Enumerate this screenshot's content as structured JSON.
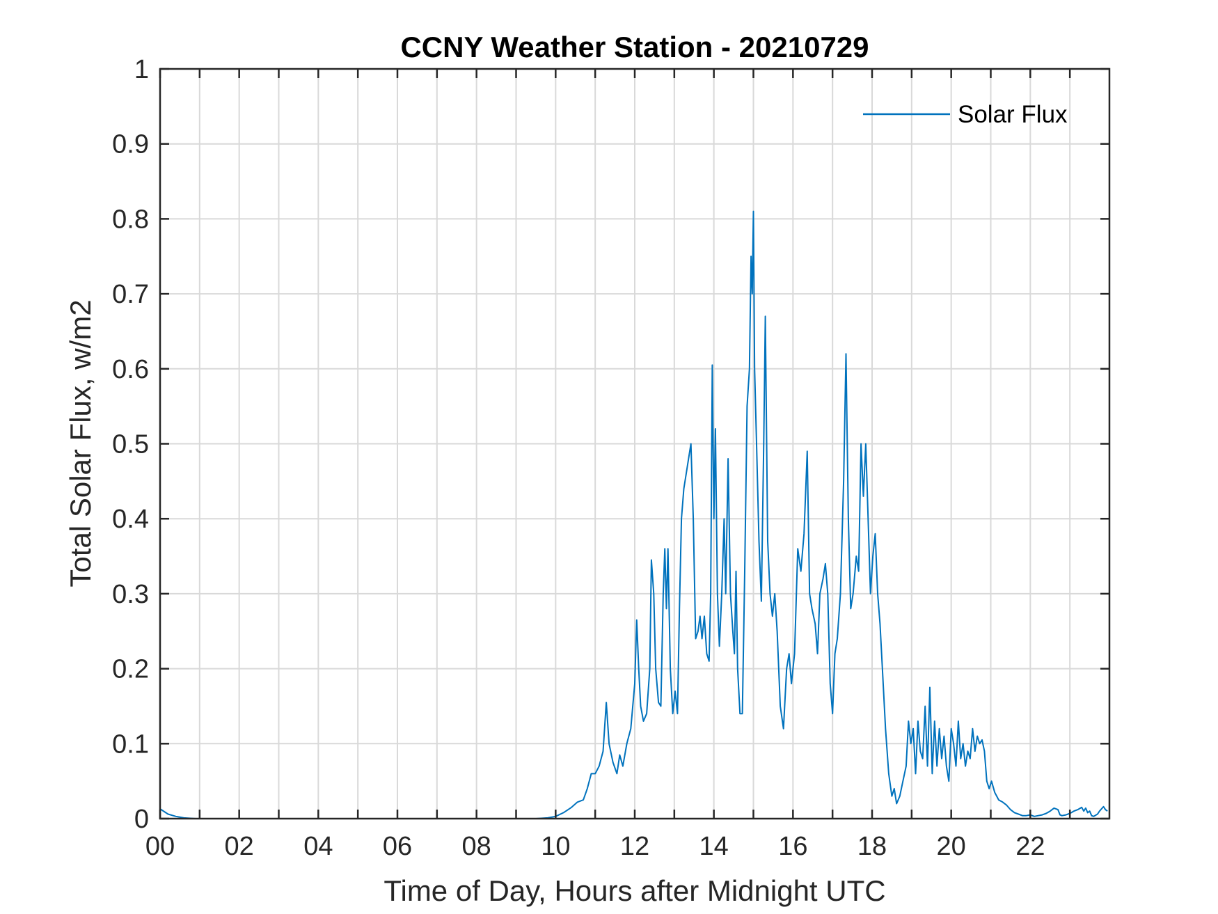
{
  "chart_data": {
    "type": "line",
    "title": "CCNY Weather Station - 20210729",
    "xlabel": "Time of Day, Hours after Midnight UTC",
    "ylabel": "Total Solar Flux, w/m2",
    "xlim": [
      0,
      24
    ],
    "ylim": [
      0,
      1
    ],
    "grid": true,
    "legend_position": "top-right",
    "x_ticks": [
      0,
      1,
      2,
      3,
      4,
      5,
      6,
      7,
      8,
      9,
      10,
      11,
      12,
      13,
      14,
      15,
      16,
      17,
      18,
      19,
      20,
      21,
      22,
      23
    ],
    "x_tick_labels": [
      "00",
      "02",
      "04",
      "06",
      "08",
      "10",
      "12",
      "14",
      "16",
      "18",
      "20",
      "22"
    ],
    "x_tick_label_values": [
      0,
      2,
      4,
      6,
      8,
      10,
      12,
      14,
      16,
      18,
      20,
      22
    ],
    "y_ticks": [
      0,
      0.1,
      0.2,
      0.3,
      0.4,
      0.5,
      0.6,
      0.7,
      0.8,
      0.9,
      1
    ],
    "y_tick_labels": [
      "0",
      "0.1",
      "0.2",
      "0.3",
      "0.4",
      "0.5",
      "0.6",
      "0.7",
      "0.8",
      "0.9",
      "1"
    ],
    "series": [
      {
        "name": "Solar Flux",
        "color": "#0072BD",
        "points": [
          [
            0.0,
            0.013
          ],
          [
            0.2,
            0.006
          ],
          [
            0.4,
            0.003
          ],
          [
            0.6,
            0.001
          ],
          [
            0.9,
            0.0
          ],
          [
            2.0,
            0.0
          ],
          [
            4.0,
            0.0
          ],
          [
            6.0,
            0.0
          ],
          [
            8.0,
            0.0
          ],
          [
            9.5,
            0.0
          ],
          [
            9.8,
            0.001
          ],
          [
            10.0,
            0.003
          ],
          [
            10.2,
            0.008
          ],
          [
            10.4,
            0.015
          ],
          [
            10.55,
            0.022
          ],
          [
            10.7,
            0.025
          ],
          [
            10.8,
            0.04
          ],
          [
            10.9,
            0.06
          ],
          [
            11.0,
            0.06
          ],
          [
            11.1,
            0.07
          ],
          [
            11.2,
            0.09
          ],
          [
            11.28,
            0.155
          ],
          [
            11.35,
            0.1
          ],
          [
            11.45,
            0.075
          ],
          [
            11.55,
            0.06
          ],
          [
            11.62,
            0.085
          ],
          [
            11.7,
            0.07
          ],
          [
            11.8,
            0.1
          ],
          [
            11.9,
            0.12
          ],
          [
            12.0,
            0.18
          ],
          [
            12.05,
            0.265
          ],
          [
            12.1,
            0.2
          ],
          [
            12.15,
            0.15
          ],
          [
            12.22,
            0.13
          ],
          [
            12.3,
            0.14
          ],
          [
            12.38,
            0.2
          ],
          [
            12.42,
            0.345
          ],
          [
            12.48,
            0.3
          ],
          [
            12.53,
            0.2
          ],
          [
            12.6,
            0.155
          ],
          [
            12.66,
            0.15
          ],
          [
            12.72,
            0.3
          ],
          [
            12.76,
            0.36
          ],
          [
            12.8,
            0.28
          ],
          [
            12.84,
            0.36
          ],
          [
            12.9,
            0.2
          ],
          [
            12.96,
            0.14
          ],
          [
            13.02,
            0.17
          ],
          [
            13.08,
            0.14
          ],
          [
            13.13,
            0.28
          ],
          [
            13.18,
            0.4
          ],
          [
            13.24,
            0.44
          ],
          [
            13.3,
            0.46
          ],
          [
            13.36,
            0.48
          ],
          [
            13.42,
            0.5
          ],
          [
            13.48,
            0.4
          ],
          [
            13.54,
            0.24
          ],
          [
            13.6,
            0.25
          ],
          [
            13.65,
            0.27
          ],
          [
            13.7,
            0.24
          ],
          [
            13.76,
            0.27
          ],
          [
            13.82,
            0.22
          ],
          [
            13.88,
            0.21
          ],
          [
            13.92,
            0.3
          ],
          [
            13.96,
            0.605
          ],
          [
            14.0,
            0.4
          ],
          [
            14.04,
            0.52
          ],
          [
            14.09,
            0.3
          ],
          [
            14.14,
            0.23
          ],
          [
            14.2,
            0.3
          ],
          [
            14.26,
            0.4
          ],
          [
            14.3,
            0.3
          ],
          [
            14.36,
            0.48
          ],
          [
            14.42,
            0.3
          ],
          [
            14.48,
            0.25
          ],
          [
            14.52,
            0.22
          ],
          [
            14.56,
            0.33
          ],
          [
            14.6,
            0.2
          ],
          [
            14.66,
            0.14
          ],
          [
            14.72,
            0.14
          ],
          [
            14.78,
            0.33
          ],
          [
            14.84,
            0.55
          ],
          [
            14.9,
            0.6
          ],
          [
            14.94,
            0.75
          ],
          [
            14.97,
            0.7
          ],
          [
            15.0,
            0.81
          ],
          [
            15.03,
            0.6
          ],
          [
            15.08,
            0.5
          ],
          [
            15.14,
            0.37
          ],
          [
            15.2,
            0.29
          ],
          [
            15.26,
            0.5
          ],
          [
            15.3,
            0.67
          ],
          [
            15.36,
            0.37
          ],
          [
            15.42,
            0.3
          ],
          [
            15.48,
            0.27
          ],
          [
            15.54,
            0.3
          ],
          [
            15.6,
            0.25
          ],
          [
            15.68,
            0.15
          ],
          [
            15.76,
            0.12
          ],
          [
            15.84,
            0.2
          ],
          [
            15.9,
            0.22
          ],
          [
            15.96,
            0.18
          ],
          [
            16.04,
            0.22
          ],
          [
            16.12,
            0.36
          ],
          [
            16.2,
            0.33
          ],
          [
            16.28,
            0.38
          ],
          [
            16.36,
            0.49
          ],
          [
            16.42,
            0.3
          ],
          [
            16.48,
            0.28
          ],
          [
            16.56,
            0.26
          ],
          [
            16.62,
            0.22
          ],
          [
            16.68,
            0.3
          ],
          [
            16.76,
            0.32
          ],
          [
            16.82,
            0.34
          ],
          [
            16.88,
            0.3
          ],
          [
            16.94,
            0.18
          ],
          [
            17.0,
            0.14
          ],
          [
            17.06,
            0.22
          ],
          [
            17.12,
            0.24
          ],
          [
            17.2,
            0.3
          ],
          [
            17.28,
            0.45
          ],
          [
            17.34,
            0.62
          ],
          [
            17.4,
            0.4
          ],
          [
            17.46,
            0.28
          ],
          [
            17.52,
            0.3
          ],
          [
            17.6,
            0.35
          ],
          [
            17.66,
            0.33
          ],
          [
            17.72,
            0.5
          ],
          [
            17.78,
            0.43
          ],
          [
            17.84,
            0.5
          ],
          [
            17.9,
            0.4
          ],
          [
            17.96,
            0.3
          ],
          [
            18.02,
            0.35
          ],
          [
            18.08,
            0.38
          ],
          [
            18.14,
            0.3
          ],
          [
            18.2,
            0.26
          ],
          [
            18.26,
            0.2
          ],
          [
            18.34,
            0.12
          ],
          [
            18.42,
            0.06
          ],
          [
            18.5,
            0.03
          ],
          [
            18.56,
            0.04
          ],
          [
            18.62,
            0.02
          ],
          [
            18.7,
            0.03
          ],
          [
            18.78,
            0.05
          ],
          [
            18.86,
            0.07
          ],
          [
            18.92,
            0.13
          ],
          [
            18.98,
            0.1
          ],
          [
            19.04,
            0.12
          ],
          [
            19.1,
            0.06
          ],
          [
            19.16,
            0.13
          ],
          [
            19.22,
            0.09
          ],
          [
            19.28,
            0.08
          ],
          [
            19.34,
            0.15
          ],
          [
            19.4,
            0.07
          ],
          [
            19.46,
            0.175
          ],
          [
            19.52,
            0.06
          ],
          [
            19.58,
            0.13
          ],
          [
            19.64,
            0.07
          ],
          [
            19.7,
            0.12
          ],
          [
            19.76,
            0.08
          ],
          [
            19.82,
            0.11
          ],
          [
            19.88,
            0.07
          ],
          [
            19.94,
            0.05
          ],
          [
            20.0,
            0.12
          ],
          [
            20.06,
            0.1
          ],
          [
            20.12,
            0.07
          ],
          [
            20.18,
            0.13
          ],
          [
            20.24,
            0.08
          ],
          [
            20.3,
            0.1
          ],
          [
            20.36,
            0.07
          ],
          [
            20.42,
            0.09
          ],
          [
            20.48,
            0.08
          ],
          [
            20.54,
            0.12
          ],
          [
            20.6,
            0.09
          ],
          [
            20.66,
            0.11
          ],
          [
            20.72,
            0.1
          ],
          [
            20.78,
            0.105
          ],
          [
            20.84,
            0.09
          ],
          [
            20.9,
            0.05
          ],
          [
            20.96,
            0.04
          ],
          [
            21.02,
            0.05
          ],
          [
            21.1,
            0.035
          ],
          [
            21.2,
            0.025
          ],
          [
            21.3,
            0.022
          ],
          [
            21.4,
            0.018
          ],
          [
            21.5,
            0.012
          ],
          [
            21.6,
            0.008
          ],
          [
            21.7,
            0.006
          ],
          [
            21.8,
            0.004
          ],
          [
            21.9,
            0.004
          ],
          [
            22.0,
            0.005
          ],
          [
            22.1,
            0.003
          ],
          [
            22.2,
            0.004
          ],
          [
            22.3,
            0.005
          ],
          [
            22.4,
            0.007
          ],
          [
            22.5,
            0.01
          ],
          [
            22.6,
            0.014
          ],
          [
            22.7,
            0.012
          ],
          [
            22.75,
            0.005
          ],
          [
            22.8,
            0.004
          ],
          [
            22.9,
            0.005
          ],
          [
            23.0,
            0.007
          ],
          [
            23.1,
            0.01
          ],
          [
            23.2,
            0.012
          ],
          [
            23.3,
            0.015
          ],
          [
            23.35,
            0.01
          ],
          [
            23.4,
            0.014
          ],
          [
            23.45,
            0.008
          ],
          [
            23.5,
            0.01
          ],
          [
            23.55,
            0.004
          ],
          [
            23.6,
            0.003
          ],
          [
            23.7,
            0.006
          ],
          [
            23.75,
            0.01
          ],
          [
            23.8,
            0.013
          ],
          [
            23.85,
            0.016
          ],
          [
            23.9,
            0.012
          ],
          [
            23.95,
            0.01
          ]
        ]
      }
    ]
  }
}
